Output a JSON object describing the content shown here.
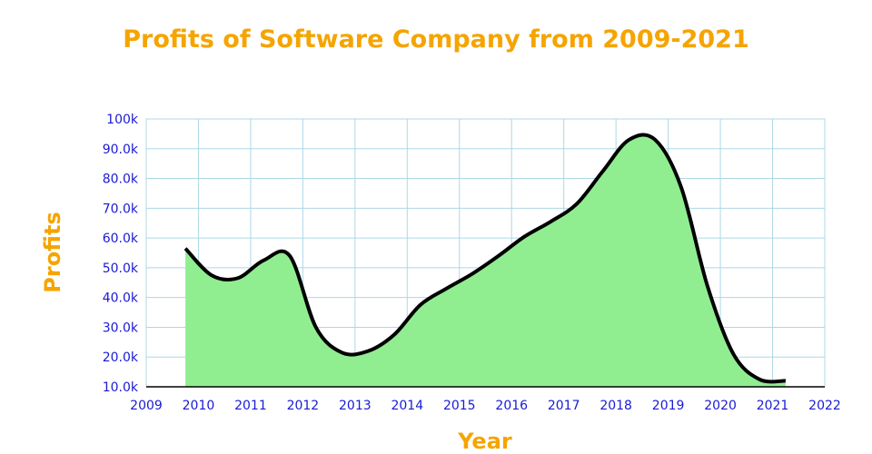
{
  "chart_data": {
    "type": "area",
    "title": "Profits of Software Company from 2009-2021",
    "xlabel": "Year",
    "ylabel": "Profits",
    "x_ticks": [
      "2009",
      "2010",
      "2011",
      "2012",
      "2013",
      "2014",
      "2015",
      "2016",
      "2017",
      "2018",
      "2019",
      "2020",
      "2021",
      "2022"
    ],
    "y_ticks": [
      "10.0k",
      "20.0k",
      "30.0k",
      "40.0k",
      "50.0k",
      "60.0k",
      "70.0k",
      "80.0k",
      "90.0k",
      "100k"
    ],
    "xlim": [
      2009,
      2022
    ],
    "ylim": [
      10000,
      100000
    ],
    "grid": true,
    "series": [
      {
        "x": [
          2009.75,
          2010.25,
          2010.75,
          2011.25,
          2011.75,
          2012.25,
          2012.75,
          2013.25,
          2013.75,
          2014.25,
          2014.75,
          2015.25,
          2015.75,
          2016.25,
          2016.75,
          2017.25,
          2017.75,
          2018.25,
          2018.75,
          2019.25,
          2019.75,
          2020.25,
          2020.75,
          2021.25
        ],
        "y": [
          56500,
          47500,
          46500,
          52500,
          54000,
          30000,
          21500,
          22000,
          27500,
          37500,
          43000,
          48000,
          54000,
          60500,
          65500,
          71500,
          82500,
          93000,
          93000,
          77000,
          44000,
          21000,
          12500,
          12000
        ]
      }
    ],
    "colors": {
      "fill": "#90ee90",
      "line": "#000000",
      "grid": "#add8e6",
      "ticks": "#1a1ad6",
      "titles": "#f5a400"
    }
  }
}
